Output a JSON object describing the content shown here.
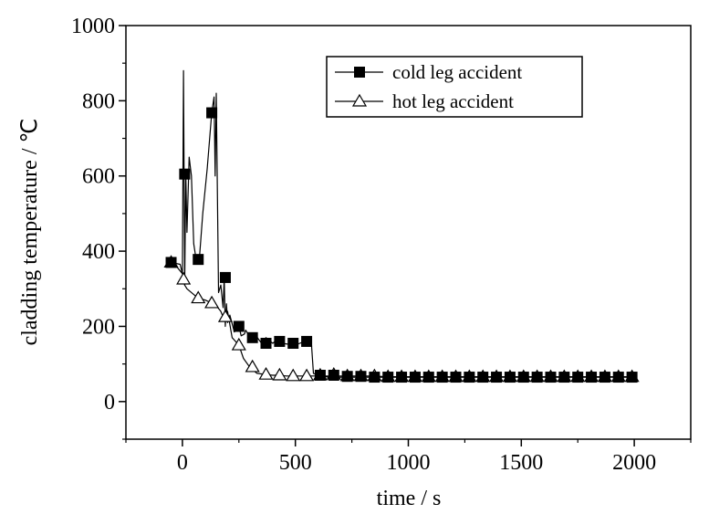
{
  "chart_data": {
    "type": "line",
    "xlabel": "time / s",
    "ylabel": "cladding temperature / ℃",
    "xlim": [
      -250,
      2250
    ],
    "ylim": [
      -100,
      1000
    ],
    "x_ticks": [
      0,
      500,
      1000,
      1500,
      2000
    ],
    "y_ticks": [
      0,
      200,
      400,
      600,
      800,
      1000
    ],
    "grid": false,
    "legend_position": "top-right",
    "series": [
      {
        "name": "cold leg accident",
        "marker": "filled-square",
        "color": "#000000",
        "x": [
          -50,
          -10,
          0,
          5,
          10,
          15,
          20,
          30,
          40,
          50,
          60,
          75,
          90,
          110,
          130,
          140,
          145,
          150,
          160,
          170,
          180,
          185,
          190,
          195,
          200,
          210,
          230,
          250,
          260,
          275,
          280,
          300,
          320,
          350,
          370,
          400,
          420,
          440,
          500,
          540,
          555,
          560,
          565,
          570,
          580,
          600,
          650,
          700,
          750,
          800,
          850,
          900,
          950,
          1000,
          1050,
          1100,
          1150,
          1200,
          1250,
          1300,
          1350,
          1400,
          1450,
          1500,
          1550,
          1600,
          1650,
          1700,
          1750,
          1800,
          1850,
          1900,
          1950,
          2000
        ],
        "y": [
          370,
          365,
          340,
          880,
          310,
          605,
          450,
          650,
          600,
          420,
          380,
          380,
          500,
          620,
          770,
          810,
          600,
          820,
          290,
          310,
          250,
          330,
          200,
          260,
          210,
          230,
          185,
          200,
          175,
          180,
          190,
          170,
          180,
          155,
          170,
          155,
          165,
          155,
          150,
          160,
          155,
          165,
          150,
          165,
          75,
          70,
          65,
          65,
          65,
          65,
          65,
          65,
          65,
          65,
          65,
          65,
          65,
          65,
          65,
          65,
          65,
          65,
          65,
          65,
          65,
          65,
          65,
          65,
          65,
          65,
          65,
          65,
          65,
          65
        ],
        "markers_x": [
          -50,
          10,
          70,
          130,
          190,
          250,
          310,
          370,
          430,
          490,
          550,
          610,
          670,
          730,
          790,
          850,
          910,
          970,
          1030,
          1090,
          1150,
          1210,
          1270,
          1330,
          1390,
          1450,
          1510,
          1570,
          1630,
          1690,
          1750,
          1810,
          1870,
          1930,
          1990
        ],
        "markers_y": [
          370,
          605,
          378,
          768,
          330,
          200,
          170,
          155,
          160,
          155,
          160,
          70,
          70,
          67,
          67,
          65,
          65,
          65,
          65,
          65,
          65,
          65,
          65,
          65,
          65,
          65,
          65,
          65,
          65,
          65,
          65,
          65,
          65,
          65,
          65
        ]
      },
      {
        "name": "hot leg accident",
        "marker": "open-triangle",
        "color": "#000000",
        "x": [
          -50,
          -20,
          0,
          10,
          20,
          40,
          70,
          100,
          130,
          150,
          170,
          180,
          190,
          200,
          220,
          250,
          270,
          300,
          330,
          370,
          400,
          430,
          460,
          490,
          520,
          550,
          580,
          610,
          650,
          700,
          750,
          800,
          850,
          900,
          950,
          1000,
          1050,
          1100,
          1150,
          1200,
          1250,
          1300,
          1350,
          1400,
          1450,
          1500,
          1550,
          1600,
          1650,
          1700,
          1750,
          1800,
          1850,
          1900,
          1950,
          2000
        ],
        "y": [
          370,
          355,
          340,
          310,
          300,
          290,
          275,
          270,
          262,
          255,
          240,
          225,
          215,
          240,
          170,
          150,
          115,
          90,
          75,
          72,
          70,
          70,
          68,
          68,
          68,
          68,
          68,
          68,
          68,
          68,
          68,
          68,
          68,
          66,
          66,
          66,
          66,
          66,
          66,
          66,
          66,
          66,
          66,
          66,
          66,
          66,
          66,
          66,
          66,
          66,
          66,
          66,
          66,
          66,
          66,
          66
        ],
        "markers_x": [
          -50,
          5,
          70,
          130,
          190,
          250,
          310,
          370,
          430,
          490,
          550,
          610,
          670,
          730,
          790,
          850,
          910,
          970,
          1030,
          1090,
          1150,
          1210,
          1270,
          1330,
          1390,
          1450,
          1510,
          1570,
          1630,
          1690,
          1750,
          1810,
          1870,
          1930,
          1990
        ],
        "markers_y": [
          370,
          325,
          275,
          262,
          225,
          150,
          92,
          72,
          70,
          68,
          68,
          70,
          72,
          68,
          68,
          68,
          66,
          66,
          66,
          66,
          66,
          66,
          66,
          66,
          66,
          66,
          66,
          66,
          66,
          66,
          66,
          66,
          66,
          66,
          66
        ]
      }
    ]
  }
}
